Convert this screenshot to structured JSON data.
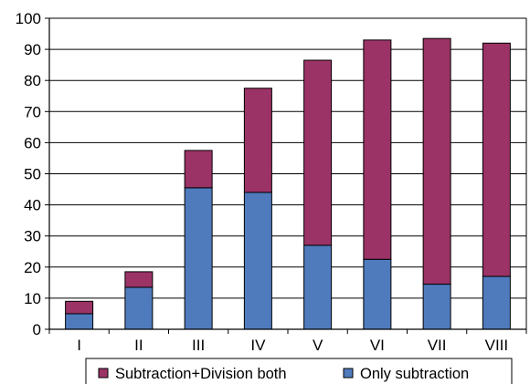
{
  "chart_data": {
    "type": "bar",
    "stacked": true,
    "categories": [
      "I",
      "II",
      "III",
      "IV",
      "V",
      "VI",
      "VII",
      "VIII"
    ],
    "series": [
      {
        "name": "Only subtraction",
        "color": "#4f7bbd",
        "values": [
          5,
          13.5,
          45.5,
          44,
          27,
          22.5,
          14.5,
          17
        ]
      },
      {
        "name": "Subtraction+Division both",
        "color": "#9b3366",
        "values": [
          4,
          5,
          12,
          33.5,
          59.5,
          70.5,
          79,
          75
        ]
      }
    ],
    "ylim": [
      0,
      100
    ],
    "yticks": [
      0,
      10,
      20,
      30,
      40,
      50,
      60,
      70,
      80,
      90,
      100
    ],
    "grid": true,
    "legend_position": "bottom",
    "legend_order": [
      "Subtraction+Division both",
      "Only subtraction"
    ],
    "title": "",
    "xlabel": "",
    "ylabel": ""
  }
}
